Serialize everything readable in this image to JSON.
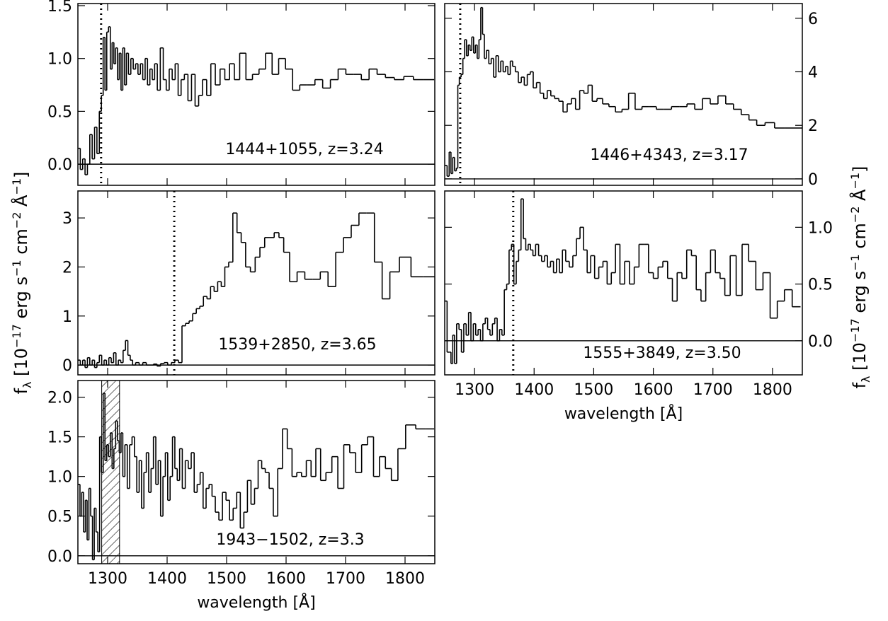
{
  "chart_data": [
    {
      "type": "line",
      "step": true,
      "label": "1444+1055, z=3.24",
      "xlim": [
        1250,
        1850
      ],
      "ylim": [
        -0.2,
        1.52
      ],
      "xticks": [
        1300,
        1400,
        1500,
        1600,
        1700,
        1800
      ],
      "xtick_labels": false,
      "yticks": [
        {
          "value": 0,
          "label": "0.0"
        },
        0.5,
        {
          "value": 1,
          "label": "1.0"
        },
        1.5
      ],
      "yaxis_side": "left",
      "marker_x": 1289,
      "hline": 0,
      "color": "#000000",
      "x": [
        1252,
        1256,
        1260,
        1264,
        1268,
        1272,
        1276,
        1280,
        1284,
        1288,
        1291,
        1294,
        1297,
        1300,
        1303,
        1306,
        1309,
        1312,
        1315,
        1318,
        1321,
        1324,
        1327,
        1330,
        1333,
        1337,
        1341,
        1345,
        1349,
        1353,
        1357,
        1361,
        1365,
        1369,
        1373,
        1377,
        1381,
        1386,
        1391,
        1396,
        1401,
        1406,
        1411,
        1416,
        1421,
        1426,
        1432,
        1438,
        1444,
        1450,
        1456,
        1463,
        1470,
        1477,
        1485,
        1493,
        1501,
        1509,
        1517,
        1527,
        1538,
        1549,
        1560,
        1571,
        1582,
        1593,
        1605,
        1617,
        1629,
        1642,
        1655,
        1668,
        1681,
        1694,
        1707,
        1720,
        1733,
        1746,
        1760,
        1774,
        1790,
        1806,
        1822,
        1840
      ],
      "values": [
        0.15,
        -0.05,
        0.05,
        -0.1,
        0.0,
        0.28,
        0.05,
        0.35,
        0.1,
        0.5,
        0.65,
        1.2,
        0.7,
        1.25,
        1.3,
        0.9,
        1.15,
        0.95,
        1.1,
        0.8,
        1.05,
        0.7,
        1.1,
        0.75,
        1.05,
        0.85,
        1.0,
        0.9,
        0.95,
        0.85,
        0.95,
        0.8,
        1.0,
        0.75,
        0.9,
        0.8,
        0.95,
        0.7,
        1.1,
        0.8,
        0.7,
        0.9,
        0.8,
        0.95,
        0.65,
        0.8,
        0.85,
        0.6,
        0.85,
        0.55,
        0.65,
        0.8,
        0.65,
        0.95,
        0.75,
        0.9,
        0.8,
        0.95,
        0.8,
        1.05,
        0.8,
        0.85,
        0.9,
        1.05,
        0.85,
        1.0,
        0.9,
        0.7,
        0.75,
        0.75,
        0.8,
        0.72,
        0.8,
        0.9,
        0.85,
        0.85,
        0.8,
        0.9,
        0.85,
        0.82,
        0.8,
        0.83,
        0.8,
        0.8
      ]
    },
    {
      "type": "line",
      "step": true,
      "label": "1446+4343, z=3.17",
      "xlim": [
        1250,
        1850
      ],
      "ylim": [
        -0.24,
        6.55
      ],
      "xticks": [
        1300,
        1400,
        1500,
        1600,
        1700,
        1800
      ],
      "xtick_labels": false,
      "yticks": [
        0,
        2,
        4,
        6
      ],
      "yaxis_side": "right",
      "marker_x": 1276,
      "hline": 0,
      "color": "#000000",
      "x": [
        1252,
        1256,
        1259,
        1262,
        1265,
        1268,
        1271,
        1273,
        1276,
        1279,
        1282,
        1285,
        1288,
        1291,
        1294,
        1297,
        1300,
        1303,
        1306,
        1309,
        1312,
        1315,
        1318,
        1322,
        1326,
        1330,
        1334,
        1338,
        1342,
        1346,
        1350,
        1354,
        1358,
        1362,
        1366,
        1371,
        1376,
        1381,
        1386,
        1391,
        1396,
        1401,
        1407,
        1413,
        1419,
        1425,
        1431,
        1438,
        1445,
        1452,
        1459,
        1466,
        1473,
        1480,
        1487,
        1494,
        1501,
        1510,
        1520,
        1531,
        1542,
        1553,
        1564,
        1575,
        1587,
        1599,
        1611,
        1624,
        1637,
        1650,
        1663,
        1676,
        1689,
        1702,
        1715,
        1728,
        1741,
        1754,
        1767,
        1780,
        1795,
        1812,
        1830,
        1845
      ],
      "values": [
        0.5,
        0.1,
        1.0,
        0.2,
        0.8,
        0.3,
        0.4,
        3.5,
        3.8,
        3.9,
        4.5,
        5.2,
        4.6,
        5.0,
        4.8,
        5.3,
        4.7,
        5.0,
        4.5,
        5.2,
        6.4,
        5.4,
        4.5,
        4.8,
        4.3,
        4.5,
        3.8,
        4.6,
        4.0,
        4.4,
        4.0,
        4.2,
        3.9,
        4.4,
        4.2,
        4.0,
        3.6,
        3.8,
        3.5,
        3.9,
        4.0,
        3.4,
        3.6,
        3.2,
        3.0,
        3.3,
        3.1,
        3.0,
        2.9,
        2.5,
        2.8,
        3.0,
        2.6,
        3.3,
        3.2,
        3.5,
        2.9,
        3.0,
        2.8,
        2.7,
        2.5,
        2.6,
        3.2,
        2.6,
        2.7,
        2.7,
        2.6,
        2.6,
        2.7,
        2.7,
        2.8,
        2.6,
        3.0,
        2.8,
        3.1,
        2.8,
        2.6,
        2.4,
        2.2,
        2.0,
        2.1,
        1.9,
        1.9,
        1.9
      ]
    },
    {
      "type": "line",
      "step": true,
      "label": "1539+2850, z=3.65",
      "xlim": [
        1250,
        1850
      ],
      "ylim": [
        -0.2,
        3.55
      ],
      "xticks": [
        1300,
        1400,
        1500,
        1600,
        1700,
        1800
      ],
      "xtick_labels": false,
      "yticks": [
        0,
        1,
        2,
        3
      ],
      "yaxis_side": "left",
      "marker_x": 1412,
      "hline": 0,
      "color": "#000000",
      "ylabel": [
        {
          "text": "f"
        },
        {
          "text": "λ",
          "shift": "sub"
        },
        {
          "text": " [10"
        },
        {
          "text": "−17",
          "shift": "super"
        },
        {
          "text": " erg s"
        },
        {
          "text": "−1",
          "shift": "super"
        },
        {
          "text": " cm"
        },
        {
          "text": "−2",
          "shift": "super"
        },
        {
          "text": " Å"
        },
        {
          "text": "−1",
          "shift": "super"
        },
        {
          "text": "]"
        }
      ],
      "x": [
        1252,
        1256,
        1260,
        1264,
        1268,
        1272,
        1276,
        1280,
        1284,
        1288,
        1292,
        1296,
        1300,
        1304,
        1308,
        1312,
        1316,
        1320,
        1324,
        1328,
        1332,
        1336,
        1340,
        1344,
        1350,
        1356,
        1362,
        1368,
        1374,
        1380,
        1386,
        1392,
        1398,
        1404,
        1410,
        1416,
        1422,
        1428,
        1434,
        1440,
        1446,
        1452,
        1458,
        1464,
        1470,
        1476,
        1482,
        1488,
        1494,
        1500,
        1507,
        1514,
        1521,
        1528,
        1536,
        1544,
        1552,
        1560,
        1568,
        1576,
        1584,
        1592,
        1600,
        1612,
        1625,
        1638,
        1651,
        1664,
        1677,
        1690,
        1703,
        1716,
        1729,
        1742,
        1755,
        1768,
        1781,
        1800,
        1820,
        1840
      ],
      "values": [
        0.1,
        0.0,
        0.1,
        -0.05,
        0.15,
        0.0,
        0.1,
        -0.05,
        0.05,
        0.2,
        0.0,
        0.1,
        0.0,
        0.15,
        0.05,
        0.25,
        0.0,
        0.1,
        0.05,
        0.3,
        0.5,
        0.2,
        0.1,
        0.0,
        0.05,
        0.0,
        0.05,
        0.0,
        0.0,
        0.02,
        -0.02,
        0.03,
        0.05,
        0.0,
        0.05,
        0.1,
        0.05,
        0.8,
        0.85,
        0.9,
        1.05,
        1.15,
        1.2,
        1.4,
        1.35,
        1.6,
        1.5,
        1.7,
        1.6,
        2.0,
        2.1,
        3.1,
        2.7,
        2.5,
        2.0,
        1.9,
        2.2,
        2.4,
        2.6,
        2.6,
        2.7,
        2.6,
        2.3,
        1.7,
        1.9,
        1.75,
        1.75,
        1.9,
        1.6,
        2.3,
        2.6,
        2.85,
        3.1,
        3.1,
        2.1,
        1.35,
        1.9,
        2.2,
        1.8,
        1.8
      ]
    },
    {
      "type": "line",
      "step": true,
      "label": "1555+3849, z=3.50",
      "xlim": [
        1250,
        1850
      ],
      "ylim": [
        -0.3,
        1.32
      ],
      "xticks": [
        1300,
        1400,
        1500,
        1600,
        1700,
        1800
      ],
      "xtick_labels": true,
      "xlabel": "wavelength [Å]",
      "yticks": [
        {
          "value": 0,
          "label": "0.0"
        },
        0.5,
        {
          "value": 1,
          "label": "1.0"
        }
      ],
      "yaxis_side": "right",
      "marker_x": 1365,
      "hline": 0,
      "color": "#000000",
      "ylabel": [
        {
          "text": "f"
        },
        {
          "text": "λ",
          "shift": "sub"
        },
        {
          "text": " [10"
        },
        {
          "text": "−17",
          "shift": "super"
        },
        {
          "text": " erg s"
        },
        {
          "text": "−1",
          "shift": "super"
        },
        {
          "text": " cm"
        },
        {
          "text": "−2",
          "shift": "super"
        },
        {
          "text": " Å"
        },
        {
          "text": "−1",
          "shift": "super"
        },
        {
          "text": "]"
        }
      ],
      "x": [
        1252,
        1256,
        1259,
        1262,
        1265,
        1268,
        1272,
        1276,
        1280,
        1284,
        1288,
        1292,
        1296,
        1300,
        1304,
        1308,
        1312,
        1316,
        1320,
        1324,
        1328,
        1332,
        1336,
        1340,
        1344,
        1348,
        1352,
        1356,
        1360,
        1364,
        1368,
        1372,
        1376,
        1380,
        1384,
        1388,
        1392,
        1396,
        1400,
        1405,
        1410,
        1415,
        1420,
        1425,
        1430,
        1435,
        1440,
        1445,
        1450,
        1456,
        1462,
        1468,
        1474,
        1480,
        1486,
        1492,
        1498,
        1505,
        1512,
        1519,
        1526,
        1533,
        1540,
        1548,
        1556,
        1564,
        1572,
        1580,
        1588,
        1596,
        1604,
        1612,
        1620,
        1628,
        1636,
        1644,
        1652,
        1660,
        1668,
        1676,
        1684,
        1692,
        1700,
        1708,
        1716,
        1724,
        1734,
        1744,
        1754,
        1766,
        1778,
        1790,
        1802,
        1814,
        1826,
        1840
      ],
      "values": [
        0.35,
        -0.1,
        -0.1,
        -0.2,
        0.05,
        -0.2,
        0.15,
        0.1,
        -0.1,
        0.15,
        0.05,
        0.25,
        0.0,
        0.15,
        0.05,
        0.1,
        0.0,
        0.15,
        0.2,
        0.1,
        0.05,
        0.15,
        0.2,
        0.0,
        0.1,
        0.05,
        0.45,
        0.5,
        0.8,
        0.85,
        0.5,
        0.7,
        0.8,
        1.25,
        0.9,
        0.8,
        0.85,
        0.8,
        0.75,
        0.85,
        0.75,
        0.7,
        0.75,
        0.65,
        0.7,
        0.6,
        0.72,
        0.6,
        0.8,
        0.7,
        0.65,
        0.75,
        0.9,
        1.0,
        0.8,
        0.6,
        0.75,
        0.55,
        0.65,
        0.7,
        0.5,
        0.6,
        0.85,
        0.5,
        0.7,
        0.5,
        0.65,
        0.85,
        0.85,
        0.6,
        0.55,
        0.65,
        0.7,
        0.55,
        0.35,
        0.6,
        0.55,
        0.8,
        0.75,
        0.45,
        0.35,
        0.6,
        0.8,
        0.6,
        0.55,
        0.4,
        0.75,
        0.4,
        0.85,
        0.7,
        0.45,
        0.6,
        0.2,
        0.35,
        0.45,
        0.3
      ]
    },
    {
      "type": "line",
      "step": true,
      "label": "1943−1502, z=3.3",
      "xlim": [
        1250,
        1850
      ],
      "ylim": [
        -0.1,
        2.21
      ],
      "xticks": [
        1300,
        1400,
        1500,
        1600,
        1700,
        1800
      ],
      "xtick_labels": true,
      "xlabel": "wavelength [Å]",
      "yticks": [
        {
          "value": 0,
          "label": "0.0"
        },
        0.5,
        {
          "value": 1,
          "label": "1.0"
        },
        1.5,
        {
          "value": 2,
          "label": "2.0"
        }
      ],
      "yaxis_side": "left",
      "shade": [
        1290,
        1320
      ],
      "hline": 0,
      "color": "#000000",
      "x": [
        1252,
        1255,
        1258,
        1261,
        1264,
        1267,
        1270,
        1273,
        1276,
        1279,
        1282,
        1285,
        1288,
        1291,
        1294,
        1297,
        1300,
        1303,
        1306,
        1309,
        1312,
        1315,
        1318,
        1321,
        1324,
        1327,
        1331,
        1335,
        1339,
        1343,
        1347,
        1351,
        1355,
        1359,
        1363,
        1367,
        1371,
        1375,
        1379,
        1383,
        1387,
        1391,
        1395,
        1399,
        1403,
        1407,
        1411,
        1415,
        1419,
        1423,
        1428,
        1433,
        1438,
        1443,
        1448,
        1453,
        1458,
        1463,
        1468,
        1473,
        1478,
        1484,
        1490,
        1496,
        1502,
        1508,
        1514,
        1520,
        1526,
        1532,
        1538,
        1544,
        1550,
        1556,
        1562,
        1568,
        1575,
        1582,
        1590,
        1598,
        1606,
        1614,
        1622,
        1630,
        1638,
        1646,
        1654,
        1662,
        1672,
        1682,
        1692,
        1702,
        1712,
        1722,
        1732,
        1742,
        1752,
        1762,
        1772,
        1782,
        1794,
        1808,
        1828,
        1842
      ],
      "values": [
        0.9,
        0.5,
        0.8,
        0.3,
        0.7,
        0.2,
        0.85,
        0.5,
        -0.05,
        0.6,
        0.3,
        0.05,
        1.5,
        1.05,
        2.05,
        1.2,
        1.4,
        1.25,
        1.55,
        1.1,
        1.35,
        1.7,
        1.45,
        1.3,
        1.55,
        1.0,
        1.4,
        0.85,
        1.4,
        1.5,
        1.25,
        0.8,
        1.2,
        0.6,
        1.05,
        1.3,
        0.8,
        1.1,
        1.5,
        0.9,
        1.2,
        0.5,
        1.0,
        1.3,
        0.7,
        1.0,
        1.5,
        1.1,
        0.95,
        1.35,
        0.85,
        1.2,
        1.1,
        1.3,
        0.8,
        0.9,
        1.05,
        0.6,
        0.85,
        0.9,
        0.75,
        0.55,
        0.45,
        0.8,
        0.7,
        0.45,
        0.6,
        0.8,
        0.35,
        0.55,
        0.95,
        0.65,
        0.85,
        1.2,
        1.1,
        1.05,
        0.85,
        0.5,
        1.1,
        1.6,
        1.35,
        1.0,
        1.05,
        1.0,
        1.2,
        1.0,
        1.35,
        0.95,
        1.05,
        1.25,
        0.85,
        1.4,
        1.3,
        1.05,
        1.4,
        1.5,
        1.0,
        1.25,
        1.1,
        0.95,
        1.35,
        1.65,
        1.6,
        1.6
      ]
    }
  ]
}
